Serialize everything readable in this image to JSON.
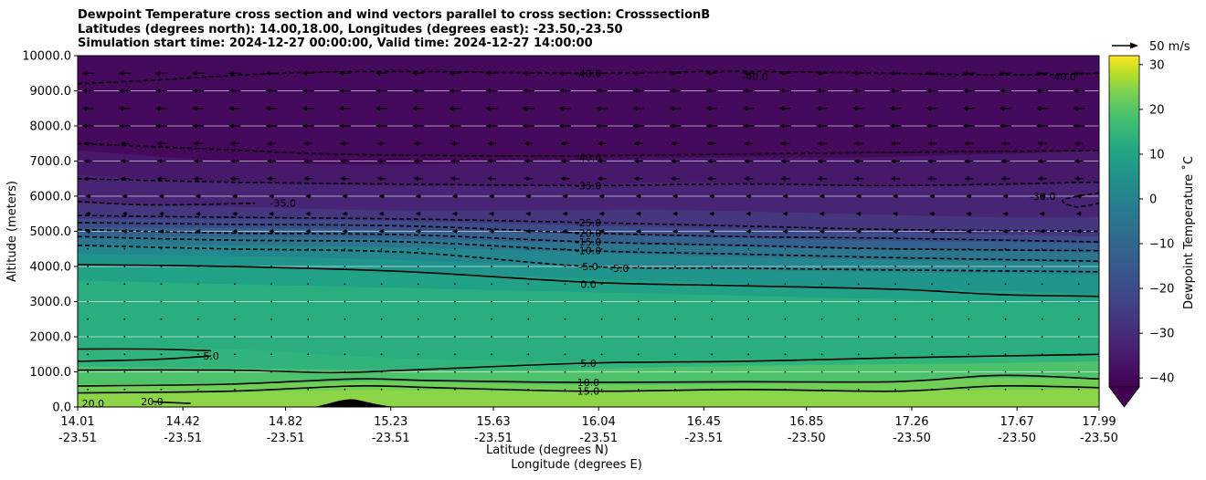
{
  "chart_data": {
    "type": "heatmap",
    "title_lines": [
      "Dewpoint Temperature cross section and wind vectors parallel to cross section: CrosssectionB",
      "Latitudes (degrees north): 14.00,18.00, Longitudes (degrees east): -23.50,-23.50",
      "Simulation start time: 2024-12-27 00:00:00, Valid time: 2024-12-27 14:00:00"
    ],
    "ylabel": "Altitude (meters)",
    "xlabel_line1": "Latitude (degrees N)",
    "xlabel_line2": "Longitude (degrees E)",
    "ylim": [
      0,
      10000
    ],
    "y_ticks": [
      "0.0",
      "1000.0",
      "2000.0",
      "3000.0",
      "4000.0",
      "5000.0",
      "6000.0",
      "7000.0",
      "8000.0",
      "9000.0",
      "10000.0"
    ],
    "x_ticks_lat": [
      "14.01",
      "14.42",
      "14.82",
      "15.23",
      "15.63",
      "16.04",
      "16.45",
      "16.85",
      "17.26",
      "17.67",
      "17.99"
    ],
    "x_ticks_lon": [
      "-23.51",
      "-23.51",
      "-23.51",
      "-23.51",
      "-23.51",
      "-23.51",
      "-23.51",
      "-23.50",
      "-23.50",
      "-23.50",
      "-23.50"
    ],
    "colorbar": {
      "label": "Dewpoint Temperature ˚C",
      "ticks": [
        "30",
        "20",
        "10",
        "0",
        "−10",
        "−20",
        "−30",
        "−40"
      ],
      "range": [
        -42,
        32
      ],
      "extend": "min"
    },
    "quiver_key_label": "50 m/s",
    "contour_labels": [
      {
        "text": "-40.0",
        "x": 16.0,
        "y": 9500
      },
      {
        "text": "-40.0",
        "x": 16.0,
        "y": 7100
      },
      {
        "text": "-35.0",
        "x": 16.0,
        "y": 6300
      },
      {
        "text": "-25.0",
        "x": 16.0,
        "y": 5250
      },
      {
        "text": "-20.0",
        "x": 16.0,
        "y": 4950
      },
      {
        "text": "-15.0",
        "x": 16.0,
        "y": 4700
      },
      {
        "text": "-10.0",
        "x": 16.0,
        "y": 4450
      },
      {
        "text": "-5.0",
        "x": 16.0,
        "y": 4000
      },
      {
        "text": "-5.0",
        "x": 16.12,
        "y": 3950
      },
      {
        "text": "0.0",
        "x": 16.0,
        "y": 3500
      },
      {
        "text": "5.0",
        "x": 16.0,
        "y": 1250
      },
      {
        "text": "10.0",
        "x": 16.0,
        "y": 700
      },
      {
        "text": "15.0",
        "x": 16.0,
        "y": 450
      },
      {
        "text": "5.0",
        "x": 14.53,
        "y": 1450
      },
      {
        "text": "20.0",
        "x": 14.07,
        "y": 100
      },
      {
        "text": "20.0",
        "x": 14.3,
        "y": 150
      },
      {
        "text": "-40.0",
        "x": 16.65,
        "y": 9400
      },
      {
        "text": "-40.0",
        "x": 17.85,
        "y": 9400
      },
      {
        "text": "-30.0",
        "x": 17.77,
        "y": 6000
      },
      {
        "text": "-35.0",
        "x": 14.81,
        "y": 5800
      }
    ]
  }
}
